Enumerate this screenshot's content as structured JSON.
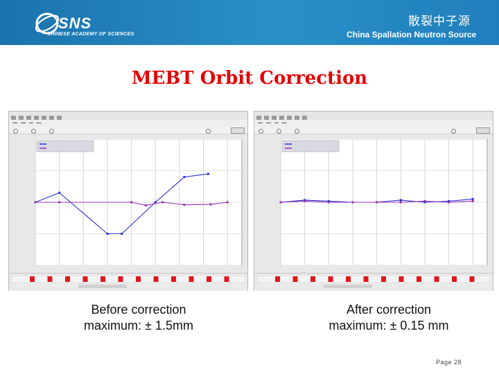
{
  "header": {
    "logo_text": "SNS",
    "logo_subtext": "CHINESE ACADEMY OF SCIENCES",
    "chinese_title": "散裂中子源",
    "english_title": "China Spallation Neutron Source",
    "background_color": "#1f7fbc"
  },
  "slide": {
    "title": "MEBT Orbit Correction",
    "title_color": "#e30000",
    "page_label": "Page 28"
  },
  "captions": {
    "left_line1": "Before correction",
    "left_line2": "maximum: ± 1.5mm",
    "right_line1": "After correction",
    "right_line2": "maximum: ± 0.15 mm"
  },
  "chart_data": [
    {
      "type": "line",
      "x": [
        1,
        2,
        3,
        4,
        5,
        6,
        7,
        8,
        9
      ],
      "series": [
        {
          "color": "#2b2fcf",
          "values": [
            0.0,
            0.45,
            null,
            -1.5,
            -1.5,
            0.0,
            1.2,
            1.35,
            null
          ]
        },
        {
          "color": "#9a2fb8",
          "values": [
            0.0,
            0.0,
            null,
            0.0,
            -0.15,
            0.0,
            -0.12,
            -0.1,
            0.0
          ]
        }
      ],
      "series_x": [
        [
          1.0,
          2.0,
          null,
          4.0,
          4.6,
          6.0,
          7.2,
          8.2,
          null
        ],
        [
          1.0,
          2.0,
          null,
          5.0,
          5.6,
          6.3,
          7.2,
          8.3,
          9.0
        ]
      ],
      "ylim": [
        -3,
        3
      ],
      "grid": true,
      "legend_position": "top-left",
      "status_bar_markers": 12
    },
    {
      "type": "line",
      "x": [
        1,
        2,
        3,
        4,
        5,
        6,
        7,
        8,
        9
      ],
      "series": [
        {
          "color": "#2b2fcf",
          "values": [
            0.0,
            0.1,
            0.05,
            0.0,
            0.0,
            0.1,
            0.0,
            0.05,
            0.15
          ]
        },
        {
          "color": "#9a2fb8",
          "values": [
            0.0,
            0.05,
            0.0,
            0.0,
            0.0,
            0.0,
            0.05,
            0.0,
            0.05
          ]
        }
      ],
      "ylim": [
        -3,
        3
      ],
      "grid": true,
      "legend_position": "top-left",
      "status_bar_markers": 12
    }
  ]
}
